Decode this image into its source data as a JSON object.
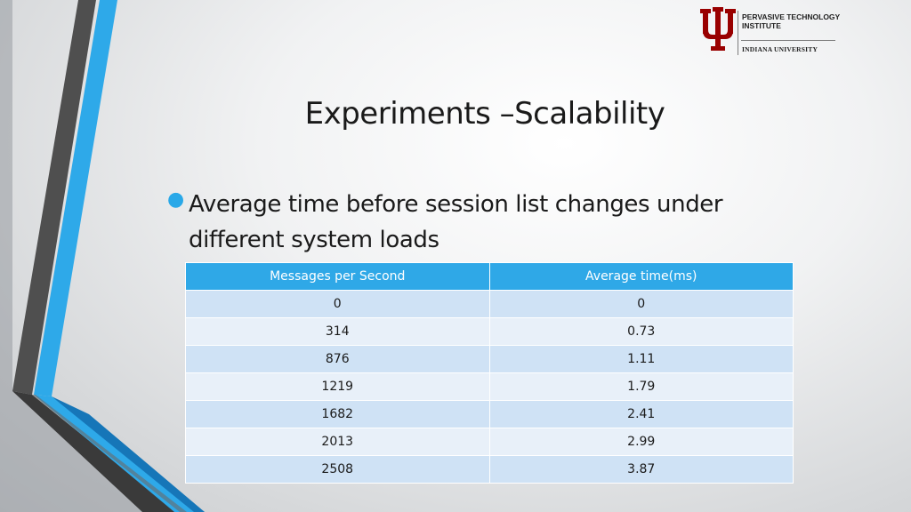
{
  "logo": {
    "institute_line1": "PERVASIVE TECHNOLOGY",
    "institute_line2": "INSTITUTE",
    "university": "INDIANA UNIVERSITY",
    "icon": "iu-trident-logo",
    "brand_color": "#990000"
  },
  "slide": {
    "title": "Experiments –Scalability",
    "bullet": "Average time before session list changes under different system loads"
  },
  "table": {
    "headers": [
      "Messages per Second",
      "Average time(ms)"
    ],
    "rows": [
      [
        "0",
        "0"
      ],
      [
        "314",
        "0.73"
      ],
      [
        "876",
        "1.11"
      ],
      [
        "1219",
        "1.79"
      ],
      [
        "1682",
        "2.41"
      ],
      [
        "2013",
        "2.99"
      ],
      [
        "2508",
        "3.87"
      ]
    ]
  },
  "colors": {
    "accent": "#2fa8e7",
    "row_odd": "#cfe2f5",
    "row_even": "#e8f0f9",
    "deco_dark": "#4d4d4d",
    "deco_blue": "#29a8e8"
  }
}
